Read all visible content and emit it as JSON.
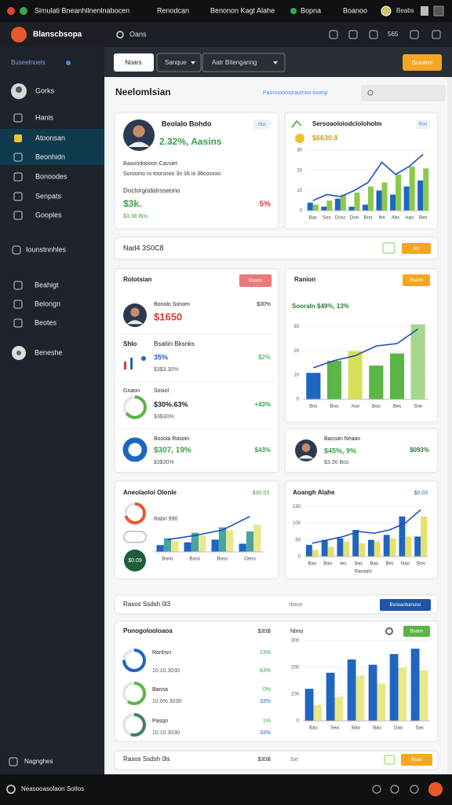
{
  "top_bar": {
    "tabs": [
      "Simulati Bneanhilnenlnabocen",
      "Renodcan",
      "Benonon Kagt Alahe",
      "Bopna",
      "Boanoo"
    ],
    "user": "Beabs"
  },
  "header": {
    "brand": "Blanscbsopa",
    "search": "Oans",
    "count": "565"
  },
  "sidebar": {
    "label": "Buseelnoels",
    "user": "Gorks",
    "nav": [
      "Hanis",
      "Atoonsan",
      "Beonhidn",
      "Bonoodes",
      "Senpats",
      "Gooples"
    ],
    "section": "Iounstnnhles",
    "tools": [
      "Beahigt",
      "Belongn",
      "Beotes"
    ],
    "extra": "Beneshe",
    "footer": "Nagnghes"
  },
  "toolbar": {
    "tabs": [
      "Noars",
      "Sanque",
      "Aatr Bitenganng"
    ],
    "action": "Gusalrer"
  },
  "page": {
    "title": "Neelomlsian",
    "link": "Paonnoomoraumoo loomp"
  },
  "profile_card": {
    "name": "Beolalo Bohdo",
    "stat": "2.32%, Aasins",
    "tag": "Sbs",
    "line1": "Baaondoooon Cacsiet",
    "line2": "Sonoono ro toorsnoo 3o 36 io 36cossoo",
    "line3": "Doctorgodatroseono",
    "amount": "$3k.",
    "sub": "$3.38 Bos",
    "change": "5%"
  },
  "trend_card": {
    "title": "Sersoaoloiodcloloholm",
    "badge": "Bos",
    "value": "$6630.8",
    "chart": {
      "categories": [
        "Bas",
        "Soo",
        "Dosc",
        "Don",
        "Bno",
        "Ihe",
        "Abs",
        "Aao",
        "Bes"
      ],
      "series": [
        {
          "color": "#1f66c1",
          "values": [
            4,
            2,
            6,
            2,
            3,
            10,
            8,
            12,
            15
          ]
        },
        {
          "color": "#8cc84b",
          "values": [
            3,
            5,
            8,
            9,
            12,
            14,
            18,
            22,
            21
          ]
        }
      ],
      "line": {
        "color": "#1f4fbf",
        "values": [
          5,
          8,
          7,
          10,
          14,
          24,
          18,
          22,
          28
        ]
      },
      "ylim": [
        0,
        32
      ],
      "yticks": [
        0,
        10,
        20,
        30
      ]
    }
  },
  "summary_strip": {
    "text": "Nad4 3S0C8",
    "button": "Ixo"
  },
  "ranking_card": {
    "title": "Rolotsian",
    "button": "Bsaon",
    "rows": [
      {
        "name": "Bonolo Sonom",
        "pct": "$30%",
        "amount": "$1650"
      },
      {
        "label": "Shlo",
        "name": "Bsatiin Bksnks",
        "value": "35%",
        "change": "$2%",
        "sub": "$3$3.30%"
      },
      {
        "label": "Gnaon",
        "name": "Sosiol",
        "value": "$30%.63%",
        "change": "+43%",
        "sub": "$3$30%",
        "donut": {
          "value": 65,
          "color": "#5cb547"
        }
      },
      {
        "name": "Bosoia Rasoin",
        "value": "$307, 19%",
        "change": "$43%",
        "sub": "$3$30%",
        "donut": {
          "value": 100,
          "color": "#1f66c1"
        }
      }
    ]
  },
  "region_card": {
    "title": "Ranion",
    "button": "Bsaon",
    "summary": "Sooraln $49%, 13%",
    "chart": {
      "categories": [
        "Bos",
        "Boo",
        "Aoo",
        "Boo",
        "Bes",
        "Sne"
      ],
      "values": [
        11,
        16,
        20,
        14,
        19,
        31
      ],
      "colors": [
        "#1f66c1",
        "#5cb547",
        "#d7df5a",
        "#5cb547",
        "#5cb547",
        "#a5d78d"
      ],
      "line": {
        "color": "#1f4fbf",
        "values": [
          13,
          16,
          18,
          22,
          23,
          29
        ]
      },
      "ylim": [
        0,
        35
      ],
      "yticks": [
        0,
        10,
        20,
        30
      ]
    }
  },
  "person_card": {
    "name": "Bacoan Neaan",
    "value": "$45%, 9%",
    "sub": "$3.30 Bos",
    "change": "$093%"
  },
  "activity_card": {
    "title": "Aneolaoloi Olonle",
    "badge": "$30.03",
    "note": "Rabn 990",
    "chip": "$0.09",
    "donut": {
      "value": 70,
      "color": "#e8572b"
    },
    "chart": {
      "categories": [
        "Bano",
        "Baso",
        "Baso",
        "Oeno"
      ],
      "series": [
        {
          "color": "#1f66c1",
          "values": [
            5,
            7,
            9,
            6
          ]
        },
        {
          "color": "#4aa3a0",
          "values": [
            10,
            14,
            18,
            15
          ]
        },
        {
          "color": "#e8e88a",
          "values": [
            8,
            12,
            16,
            20
          ]
        }
      ],
      "line": {
        "color": "#1f4fbf",
        "values": [
          9,
          12,
          16,
          26
        ]
      },
      "ylim": [
        0,
        30
      ]
    }
  },
  "growth_card": {
    "title": "Aoangh Alahe",
    "badge": "$0.03",
    "axis_label": "Rasaaln",
    "chart": {
      "categories": [
        "Bao",
        "Bao",
        "Ieo",
        "Bas",
        "Bao",
        "Bes",
        "Nao",
        "Sins"
      ],
      "series": [
        {
          "color": "#1f66c1",
          "values": [
            35,
            50,
            55,
            80,
            50,
            65,
            120,
            60
          ]
        },
        {
          "color": "#e8e06a",
          "values": [
            20,
            30,
            45,
            40,
            45,
            55,
            60,
            120
          ]
        }
      ],
      "line": {
        "color": "#1f4fbf",
        "values": [
          40,
          50,
          60,
          75,
          70,
          80,
          100,
          140
        ]
      },
      "ylim": [
        0,
        160
      ],
      "yticks": [
        0,
        50,
        100,
        150
      ]
    }
  },
  "report_strip": {
    "text": "Rasos Ssdsh 0l3",
    "note": "rbase",
    "button": "Bsnoanbanuso"
  },
  "products_card": {
    "title": "Ponogolooloaoa",
    "total": "$30B",
    "chart_title": "Nlmo",
    "button": "Bsaon",
    "rows": [
      {
        "name": "Ronhsn",
        "sub": "10.10.3030",
        "pct": "13%",
        "pct2": "63%",
        "donut": {
          "value": 75,
          "color": "#1f66c1"
        }
      },
      {
        "name": "Bansa",
        "sub": "10.0% 3030",
        "pct": "0%",
        "pct2": "33%",
        "donut": {
          "value": 60,
          "color": "#5cb547"
        }
      },
      {
        "name": "Pasqo",
        "sub": "10.10.3030",
        "pct": "1%",
        "pct2": "33%",
        "donut": {
          "value": 55,
          "color": "#3f7f6a"
        }
      }
    ],
    "chart": {
      "categories": [
        "Bao",
        "Sea",
        "Bao",
        "Bao",
        "Dao",
        "Sas"
      ],
      "series": [
        {
          "color": "#1f66c1",
          "values": [
            120,
            180,
            230,
            210,
            250,
            270
          ]
        },
        {
          "color": "#e8e88a",
          "values": [
            60,
            90,
            170,
            140,
            200,
            190
          ]
        }
      ],
      "ylim": [
        0,
        300
      ],
      "yticks": [
        0,
        100,
        200,
        300
      ]
    }
  },
  "footer_strip": {
    "text": "Rasos Ssdsh 0ls",
    "total": "$30B",
    "note": "Ibe",
    "button": "Bsao"
  },
  "bottom_bar": {
    "text": "Neasooasolaon Sotlos"
  }
}
